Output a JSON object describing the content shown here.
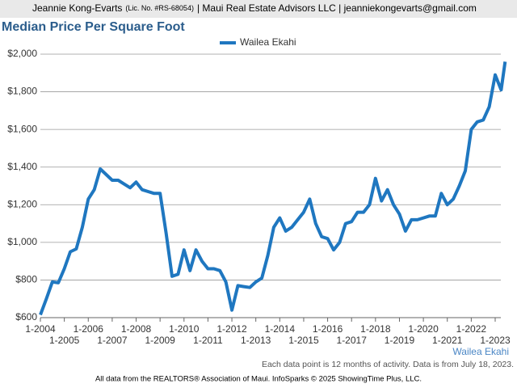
{
  "header": {
    "name": "Jeannie Kong-Evarts",
    "license": "(Lic. No. #RS-68054)",
    "rest": "| Maui Real Estate Advisors LLC | jeanniekongevarts@gmail.com"
  },
  "chart_data": {
    "type": "line",
    "title": "Median Price Per Square Foot",
    "x": [
      "1-2004",
      "4-2004",
      "7-2004",
      "10-2004",
      "1-2005",
      "4-2005",
      "7-2005",
      "10-2005",
      "1-2006",
      "4-2006",
      "7-2006",
      "10-2006",
      "1-2007",
      "4-2007",
      "7-2007",
      "10-2007",
      "1-2008",
      "4-2008",
      "7-2008",
      "10-2008",
      "1-2009",
      "4-2009",
      "7-2009",
      "10-2009",
      "1-2010",
      "4-2010",
      "7-2010",
      "10-2010",
      "1-2011",
      "4-2011",
      "7-2011",
      "10-2011",
      "1-2012",
      "4-2012",
      "7-2012",
      "10-2012",
      "1-2013",
      "4-2013",
      "7-2013",
      "10-2013",
      "1-2014",
      "4-2014",
      "7-2014",
      "10-2014",
      "1-2015",
      "4-2015",
      "7-2015",
      "10-2015",
      "1-2016",
      "4-2016",
      "7-2016",
      "10-2016",
      "1-2017",
      "4-2017",
      "7-2017",
      "10-2017",
      "1-2018",
      "4-2018",
      "7-2018",
      "10-2018",
      "1-2019",
      "4-2019",
      "7-2019",
      "10-2019",
      "1-2020",
      "4-2020",
      "7-2020",
      "10-2020",
      "1-2021",
      "4-2021",
      "7-2021",
      "10-2021",
      "1-2022",
      "4-2022",
      "7-2022",
      "10-2022",
      "1-2023",
      "4-2023",
      "6-2023"
    ],
    "series": [
      {
        "name": "Wailea Ekahi",
        "color": "#1f77c0",
        "values": [
          615,
          700,
          790,
          785,
          860,
          950,
          965,
          1080,
          1230,
          1280,
          1390,
          1360,
          1330,
          1330,
          1310,
          1290,
          1320,
          1280,
          1270,
          1260,
          1260,
          1050,
          820,
          830,
          960,
          850,
          960,
          900,
          860,
          860,
          850,
          790,
          640,
          770,
          765,
          760,
          790,
          810,
          930,
          1080,
          1130,
          1060,
          1080,
          1120,
          1160,
          1230,
          1100,
          1030,
          1020,
          960,
          1000,
          1100,
          1110,
          1160,
          1160,
          1200,
          1340,
          1220,
          1280,
          1200,
          1150,
          1060,
          1120,
          1120,
          1130,
          1140,
          1140,
          1260,
          1200,
          1230,
          1300,
          1380,
          1600,
          1640,
          1650,
          1720,
          1890,
          1810,
          1960
        ]
      }
    ],
    "ylim": [
      600,
      2000
    ],
    "yticks": [
      {
        "value": 600,
        "label": "$600"
      },
      {
        "value": 800,
        "label": "$800"
      },
      {
        "value": 1000,
        "label": "$1,000"
      },
      {
        "value": 1200,
        "label": "$1,200"
      },
      {
        "value": 1400,
        "label": "$1,400"
      },
      {
        "value": 1600,
        "label": "$1,600"
      },
      {
        "value": 1800,
        "label": "$1,800"
      },
      {
        "value": 2000,
        "label": "$2,000"
      }
    ],
    "xlim": [
      "1-2004",
      "1-2023"
    ],
    "xticks": [
      "1-2004",
      "1-2005",
      "1-2006",
      "1-2007",
      "1-2008",
      "1-2009",
      "1-2010",
      "1-2011",
      "1-2012",
      "1-2013",
      "1-2014",
      "1-2015",
      "1-2016",
      "1-2017",
      "1-2018",
      "1-2019",
      "1-2020",
      "1-2021",
      "1-2022",
      "1-2023"
    ],
    "grid": true,
    "corner_label": "Wailea Ekahi",
    "note": "Each data point is 12 months of activity. Data is from July 18, 2023."
  },
  "footer": "All data from the REALTORS® Association of Maui. InfoSparks © 2025 ShowingTime Plus, LLC."
}
